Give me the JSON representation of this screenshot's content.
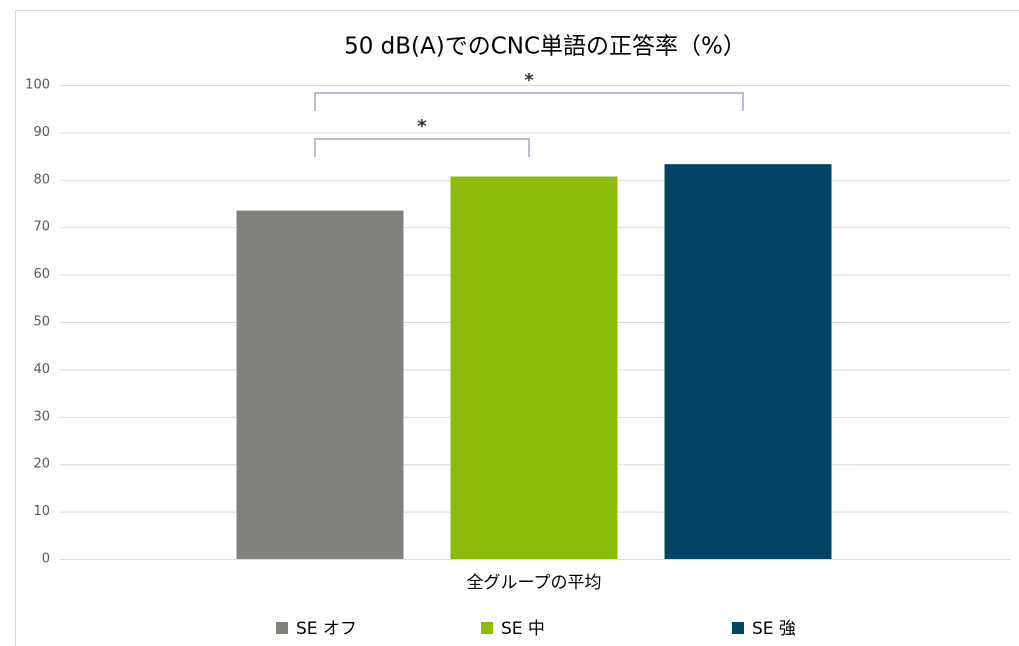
{
  "chart_data": {
    "type": "bar",
    "title": "50 dB(A)でのCNC単語の正答率（%）",
    "categories": [
      "全グループの平均"
    ],
    "series": [
      {
        "name": "SE オフ",
        "color": "#82827d",
        "values": [
          73.5
        ]
      },
      {
        "name": "SE 中",
        "color": "#8cbb0a",
        "values": [
          80.7
        ]
      },
      {
        "name": "SE 強",
        "color": "#004464",
        "values": [
          83.3
        ]
      }
    ],
    "annotations": [
      "*",
      "*"
    ],
    "ylim": [
      0,
      100
    ],
    "yticks": [
      0,
      10,
      20,
      30,
      40,
      50,
      60,
      70,
      80,
      90,
      100
    ],
    "grid": true,
    "legend": "bottom"
  }
}
